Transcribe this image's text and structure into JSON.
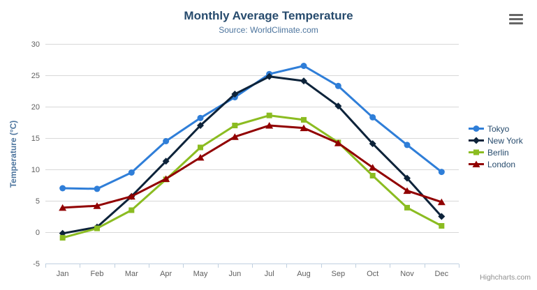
{
  "chart_data": {
    "type": "line",
    "title": "Monthly Average Temperature",
    "subtitle": "Source: WorldClimate.com",
    "xlabel": "",
    "ylabel": "Temperature (°C)",
    "categories": [
      "Jan",
      "Feb",
      "Mar",
      "Apr",
      "May",
      "Jun",
      "Jul",
      "Aug",
      "Sep",
      "Oct",
      "Nov",
      "Dec"
    ],
    "yticks": [
      -5,
      0,
      5,
      10,
      15,
      20,
      25,
      30
    ],
    "ylim": [
      -5,
      30
    ],
    "grid": true,
    "legend_position": "right",
    "series": [
      {
        "name": "Tokyo",
        "color": "#2f7ed8",
        "marker": "circle",
        "values": [
          7.0,
          6.9,
          9.5,
          14.5,
          18.2,
          21.5,
          25.2,
          26.5,
          23.3,
          18.3,
          13.9,
          9.6
        ]
      },
      {
        "name": "New York",
        "color": "#0d233a",
        "marker": "diamond",
        "values": [
          -0.2,
          0.8,
          5.7,
          11.3,
          17.0,
          22.0,
          24.8,
          24.1,
          20.1,
          14.1,
          8.6,
          2.5
        ]
      },
      {
        "name": "Berlin",
        "color": "#8bbc21",
        "marker": "square",
        "values": [
          -0.9,
          0.6,
          3.5,
          8.4,
          13.5,
          17.0,
          18.6,
          17.9,
          14.3,
          9.0,
          3.9,
          1.0
        ]
      },
      {
        "name": "London",
        "color": "#910000",
        "marker": "triangle",
        "values": [
          3.9,
          4.2,
          5.7,
          8.5,
          11.9,
          15.2,
          17.0,
          16.6,
          14.2,
          10.3,
          6.6,
          4.8
        ]
      }
    ]
  },
  "menu": {
    "icon": "hamburger-icon"
  },
  "credits": {
    "label": "Highcharts.com"
  },
  "colors": {
    "background": "#ffffff",
    "title": "#274b6d",
    "subtitle": "#4d759e",
    "axis_title": "#4d759e",
    "tick_label": "#606060",
    "grid_line": "#d8d8d8",
    "axis_line": "#c0d0e0",
    "legend_text": "#274b6d",
    "credits": "#909090",
    "menu_icon": "#666666"
  }
}
